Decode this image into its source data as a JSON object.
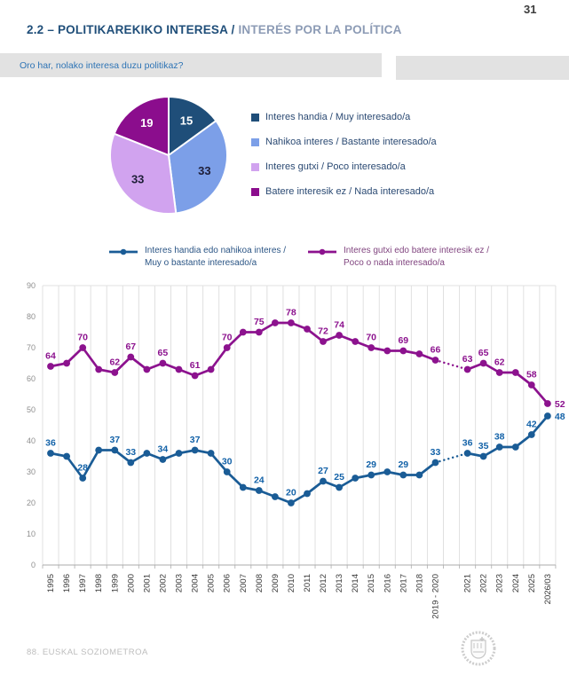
{
  "page": {
    "number": "31",
    "footer": "88. EUSKAL SOZIOMETROA"
  },
  "header": {
    "title_primary": "2.2 – POLITIKAREKIKO INTERESA /",
    "title_secondary": "INTERÉS POR LA POLÍTICA"
  },
  "question": {
    "text": "Oro har, nolako interesa duzu politikaz?"
  },
  "colors": {
    "pie_dark_blue": "#1F4E79",
    "pie_cornflower": "#7C9FE8",
    "pie_lavender": "#D1A3EF",
    "pie_magenta": "#8B0D8D",
    "line_blue": "#1A5C96",
    "line_purple": "#8C128E",
    "grid": "#E0E0E0",
    "axis": "#ABABAB",
    "x_label_text": "#3A3A3A",
    "y_label_text": "#8F8F8F",
    "question_text": "#2E74B5",
    "title_primary": "#1F4E79",
    "title_secondary": "#8C9BB5"
  },
  "chart_data": [
    {
      "type": "pie",
      "values": [
        15,
        33,
        33,
        19
      ],
      "value_labels": [
        "15",
        "33",
        "33",
        "19"
      ],
      "labels": [
        "Interes handia / Muy interesado/a",
        "Nahikoa interes / Bastante interesado/a",
        "Interes gutxi / Poco interesado/a",
        "Batere interesik ez / Nada interesado/a"
      ],
      "colors": [
        "#1F4E79",
        "#7C9FE8",
        "#D1A3EF",
        "#8B0D8D"
      ],
      "value_label_colors": [
        "#FFFFFF",
        "#1E1E38",
        "#1E1E38",
        "#FFFFFF"
      ],
      "start_angle_deg": 0,
      "direction": "clockwise"
    },
    {
      "type": "line",
      "title": "",
      "ylim": [
        0,
        90
      ],
      "ytick_interval": 10,
      "grid": "vertical",
      "legend_position": "top",
      "categories": [
        "1995",
        "1996",
        "1997",
        "1998",
        "1999",
        "2000",
        "2001",
        "2002",
        "2003",
        "2004",
        "2005",
        "2006",
        "2007",
        "2008",
        "2009",
        "2010",
        "2011",
        "2012",
        "2013",
        "2014",
        "2015",
        "2016",
        "2017",
        "2018",
        "2019 - 2020",
        "",
        "2021",
        "2022",
        "2023",
        "2024",
        "2025",
        "2026/03"
      ],
      "dotted_segment_note": "line is dotted between 2019 - 2020 and 2021",
      "series": [
        {
          "name": "Interes handia edo nahikoa interes / Muy o bastante interesado/a",
          "legend_line1": "Interes handia edo nahikoa interes /",
          "legend_line2": "Muy o bastante interesado/a",
          "color": "#1A5C96",
          "label_color": "#1362A8",
          "legend_text_color": "#2B5585",
          "values": [
            36,
            35,
            28,
            37,
            37,
            33,
            36,
            34,
            36,
            37,
            36,
            30,
            25,
            24,
            22,
            20,
            23,
            27,
            25,
            28,
            29,
            30,
            29,
            29,
            33,
            null,
            36,
            35,
            38,
            38,
            42,
            48
          ],
          "point_labels": [
            "36",
            null,
            "28",
            null,
            "37",
            "33",
            null,
            "34",
            null,
            "37",
            null,
            "30",
            null,
            "24",
            null,
            "20",
            null,
            "27",
            "25",
            null,
            "29",
            null,
            "29",
            null,
            "33",
            null,
            "36",
            "35",
            "38",
            null,
            "42",
            "48"
          ]
        },
        {
          "name": "Interes gutxi edo batere interesik ez / Poco o nada interesado/a",
          "legend_line1": "Interes gutxi edo batere interesik ez /",
          "legend_line2": "Poco o nada interesado/a",
          "color": "#8C128E",
          "label_color": "#8C128E",
          "legend_text_color": "#80447F",
          "values": [
            64,
            65,
            70,
            63,
            62,
            67,
            63,
            65,
            63,
            61,
            63,
            70,
            75,
            75,
            78,
            78,
            76,
            72,
            74,
            72,
            70,
            69,
            69,
            68,
            66,
            null,
            63,
            65,
            62,
            62,
            58,
            52
          ],
          "point_labels": [
            "64",
            null,
            "70",
            null,
            "62",
            "67",
            null,
            "65",
            null,
            "61",
            null,
            "70",
            null,
            "75",
            null,
            "78",
            null,
            "72",
            "74",
            null,
            "70",
            null,
            "69",
            null,
            "66",
            null,
            "63",
            "65",
            "62",
            null,
            "58",
            "52"
          ]
        }
      ]
    }
  ]
}
